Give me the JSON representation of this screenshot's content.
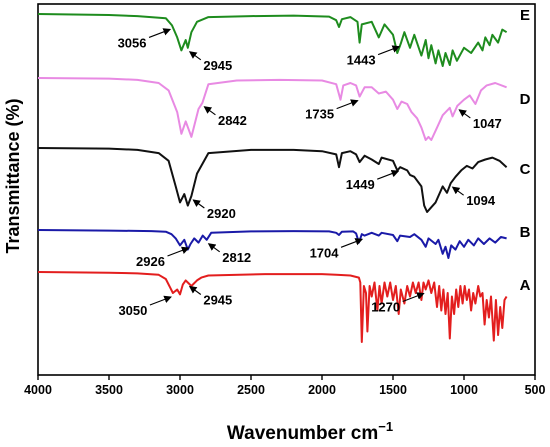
{
  "chart_data": {
    "type": "line",
    "title": "",
    "xlabel": "Wavenumber cm",
    "xlabel_superscript": "−1",
    "ylabel": "Transmittance (%)",
    "xlim": [
      4000,
      500
    ],
    "x_ticks": [
      "4000",
      "3500",
      "3000",
      "2500",
      "2000",
      "1500",
      "1000",
      "500"
    ],
    "x_tick_values": [
      4000,
      3500,
      3000,
      2500,
      2000,
      1500,
      1000,
      500
    ],
    "grid": false,
    "legend": "none",
    "series": [
      {
        "name": "E",
        "color": "#1e8c1e",
        "points": [
          [
            4000,
            0.0
          ],
          [
            3500,
            0.02
          ],
          [
            3300,
            0.04
          ],
          [
            3100,
            0.08
          ],
          [
            3056,
            0.22
          ],
          [
            3020,
            0.45
          ],
          [
            2990,
            0.7
          ],
          [
            2960,
            0.5
          ],
          [
            2945,
            0.65
          ],
          [
            2920,
            0.35
          ],
          [
            2880,
            0.15
          ],
          [
            2800,
            0.06
          ],
          [
            2500,
            0.04
          ],
          [
            2200,
            0.03
          ],
          [
            1950,
            0.05
          ],
          [
            1900,
            0.12
          ],
          [
            1880,
            0.25
          ],
          [
            1860,
            0.1
          ],
          [
            1800,
            0.06
          ],
          [
            1750,
            0.15
          ],
          [
            1735,
            0.55
          ],
          [
            1720,
            0.2
          ],
          [
            1650,
            0.15
          ],
          [
            1600,
            0.45
          ],
          [
            1560,
            0.2
          ],
          [
            1500,
            0.4
          ],
          [
            1470,
            0.75
          ],
          [
            1443,
            0.55
          ],
          [
            1420,
            0.35
          ],
          [
            1380,
            0.65
          ],
          [
            1350,
            0.4
          ],
          [
            1300,
            0.8
          ],
          [
            1270,
            0.5
          ],
          [
            1250,
            0.85
          ],
          [
            1230,
            0.6
          ],
          [
            1200,
            0.95
          ],
          [
            1180,
            0.7
          ],
          [
            1150,
            1.0
          ],
          [
            1130,
            0.75
          ],
          [
            1100,
            0.98
          ],
          [
            1080,
            0.7
          ],
          [
            1050,
            0.9
          ],
          [
            1000,
            0.65
          ],
          [
            950,
            0.75
          ],
          [
            900,
            0.55
          ],
          [
            870,
            0.7
          ],
          [
            850,
            0.45
          ],
          [
            820,
            0.6
          ],
          [
            800,
            0.4
          ],
          [
            760,
            0.55
          ],
          [
            730,
            0.3
          ],
          [
            700,
            0.35
          ]
        ]
      },
      {
        "name": "D",
        "color": "#e88ae3",
        "points": [
          [
            4000,
            0.0
          ],
          [
            3500,
            0.01
          ],
          [
            3300,
            0.03
          ],
          [
            3150,
            0.08
          ],
          [
            3080,
            0.2
          ],
          [
            3020,
            0.55
          ],
          [
            2990,
            0.9
          ],
          [
            2960,
            0.7
          ],
          [
            2920,
            0.95
          ],
          [
            2870,
            0.5
          ],
          [
            2842,
            0.4
          ],
          [
            2800,
            0.1
          ],
          [
            2600,
            0.04
          ],
          [
            2300,
            0.03
          ],
          [
            2000,
            0.04
          ],
          [
            1900,
            0.1
          ],
          [
            1870,
            0.35
          ],
          [
            1850,
            0.12
          ],
          [
            1800,
            0.08
          ],
          [
            1760,
            0.12
          ],
          [
            1735,
            0.3
          ],
          [
            1700,
            0.15
          ],
          [
            1650,
            0.15
          ],
          [
            1600,
            0.25
          ],
          [
            1550,
            0.22
          ],
          [
            1500,
            0.35
          ],
          [
            1470,
            0.5
          ],
          [
            1440,
            0.38
          ],
          [
            1400,
            0.42
          ],
          [
            1370,
            0.55
          ],
          [
            1330,
            0.65
          ],
          [
            1300,
            0.8
          ],
          [
            1270,
            1.0
          ],
          [
            1250,
            0.95
          ],
          [
            1230,
            1.0
          ],
          [
            1200,
            0.85
          ],
          [
            1150,
            0.6
          ],
          [
            1100,
            0.48
          ],
          [
            1080,
            0.62
          ],
          [
            1047,
            0.45
          ],
          [
            1000,
            0.35
          ],
          [
            960,
            0.28
          ],
          [
            920,
            0.42
          ],
          [
            880,
            0.2
          ],
          [
            840,
            0.12
          ],
          [
            780,
            0.08
          ],
          [
            700,
            0.15
          ]
        ]
      },
      {
        "name": "C",
        "color": "#111111",
        "points": [
          [
            4000,
            0.0
          ],
          [
            3500,
            0.01
          ],
          [
            3300,
            0.03
          ],
          [
            3150,
            0.08
          ],
          [
            3080,
            0.2
          ],
          [
            3030,
            0.6
          ],
          [
            3000,
            0.85
          ],
          [
            2970,
            0.72
          ],
          [
            2945,
            0.9
          ],
          [
            2920,
            0.75
          ],
          [
            2880,
            0.4
          ],
          [
            2800,
            0.08
          ],
          [
            2500,
            0.03
          ],
          [
            2200,
            0.03
          ],
          [
            2000,
            0.05
          ],
          [
            1900,
            0.1
          ],
          [
            1880,
            0.3
          ],
          [
            1860,
            0.08
          ],
          [
            1800,
            0.05
          ],
          [
            1760,
            0.1
          ],
          [
            1735,
            0.22
          ],
          [
            1700,
            0.12
          ],
          [
            1650,
            0.18
          ],
          [
            1600,
            0.25
          ],
          [
            1580,
            0.15
          ],
          [
            1500,
            0.2
          ],
          [
            1470,
            0.35
          ],
          [
            1449,
            0.3
          ],
          [
            1400,
            0.35
          ],
          [
            1380,
            0.42
          ],
          [
            1350,
            0.45
          ],
          [
            1300,
            0.6
          ],
          [
            1280,
            0.9
          ],
          [
            1260,
            1.0
          ],
          [
            1240,
            0.95
          ],
          [
            1200,
            0.85
          ],
          [
            1150,
            0.6
          ],
          [
            1120,
            0.7
          ],
          [
            1094,
            0.55
          ],
          [
            1060,
            0.45
          ],
          [
            1020,
            0.35
          ],
          [
            980,
            0.28
          ],
          [
            940,
            0.32
          ],
          [
            900,
            0.22
          ],
          [
            850,
            0.18
          ],
          [
            800,
            0.15
          ],
          [
            750,
            0.2
          ],
          [
            700,
            0.3
          ]
        ]
      },
      {
        "name": "B",
        "color": "#1a1aa8",
        "points": [
          [
            4000,
            0.0
          ],
          [
            3500,
            0.02
          ],
          [
            3200,
            0.04
          ],
          [
            3100,
            0.06
          ],
          [
            3060,
            0.15
          ],
          [
            3030,
            0.3
          ],
          [
            3000,
            0.55
          ],
          [
            2970,
            0.35
          ],
          [
            2945,
            0.7
          ],
          [
            2926,
            0.5
          ],
          [
            2900,
            0.3
          ],
          [
            2870,
            0.45
          ],
          [
            2840,
            0.2
          ],
          [
            2812,
            0.35
          ],
          [
            2780,
            0.1
          ],
          [
            2500,
            0.05
          ],
          [
            2200,
            0.04
          ],
          [
            1950,
            0.05
          ],
          [
            1900,
            0.1
          ],
          [
            1880,
            0.18
          ],
          [
            1860,
            0.06
          ],
          [
            1780,
            0.05
          ],
          [
            1760,
            0.12
          ],
          [
            1740,
            0.45
          ],
          [
            1720,
            0.15
          ],
          [
            1700,
            0.2
          ],
          [
            1650,
            0.1
          ],
          [
            1600,
            0.2
          ],
          [
            1580,
            0.1
          ],
          [
            1500,
            0.18
          ],
          [
            1470,
            0.4
          ],
          [
            1450,
            0.2
          ],
          [
            1380,
            0.25
          ],
          [
            1350,
            0.15
          ],
          [
            1300,
            0.35
          ],
          [
            1270,
            0.6
          ],
          [
            1250,
            0.3
          ],
          [
            1200,
            0.5
          ],
          [
            1180,
            0.35
          ],
          [
            1150,
            0.85
          ],
          [
            1130,
            0.6
          ],
          [
            1110,
            1.0
          ],
          [
            1090,
            0.55
          ],
          [
            1060,
            0.7
          ],
          [
            1030,
            0.4
          ],
          [
            1000,
            0.6
          ],
          [
            970,
            0.35
          ],
          [
            930,
            0.55
          ],
          [
            900,
            0.3
          ],
          [
            860,
            0.5
          ],
          [
            820,
            0.3
          ],
          [
            780,
            0.45
          ],
          [
            740,
            0.25
          ],
          [
            700,
            0.3
          ]
        ]
      },
      {
        "name": "A",
        "color": "#e31e1e",
        "points": [
          [
            4000,
            0.0
          ],
          [
            3500,
            0.01
          ],
          [
            3300,
            0.02
          ],
          [
            3150,
            0.04
          ],
          [
            3100,
            0.1
          ],
          [
            3070,
            0.22
          ],
          [
            3050,
            0.3
          ],
          [
            3020,
            0.25
          ],
          [
            3000,
            0.32
          ],
          [
            2980,
            0.18
          ],
          [
            2960,
            0.12
          ],
          [
            2945,
            0.15
          ],
          [
            2920,
            0.2
          ],
          [
            2880,
            0.12
          ],
          [
            2850,
            0.08
          ],
          [
            2800,
            0.05
          ],
          [
            2400,
            0.03
          ],
          [
            2000,
            0.03
          ],
          [
            1900,
            0.04
          ],
          [
            1800,
            0.05
          ],
          [
            1740,
            0.08
          ],
          [
            1730,
            0.15
          ],
          [
            1720,
            1.0
          ],
          [
            1705,
            0.2
          ],
          [
            1690,
            0.3
          ],
          [
            1680,
            0.85
          ],
          [
            1665,
            0.2
          ],
          [
            1650,
            0.35
          ],
          [
            1630,
            0.15
          ],
          [
            1610,
            0.55
          ],
          [
            1595,
            0.2
          ],
          [
            1580,
            0.45
          ],
          [
            1560,
            0.15
          ],
          [
            1540,
            0.35
          ],
          [
            1520,
            0.15
          ],
          [
            1500,
            0.4
          ],
          [
            1480,
            0.2
          ],
          [
            1460,
            0.6
          ],
          [
            1445,
            0.25
          ],
          [
            1420,
            0.45
          ],
          [
            1400,
            0.2
          ],
          [
            1380,
            0.35
          ],
          [
            1360,
            0.15
          ],
          [
            1340,
            0.3
          ],
          [
            1320,
            0.15
          ],
          [
            1300,
            0.4
          ],
          [
            1285,
            0.15
          ],
          [
            1270,
            0.25
          ],
          [
            1250,
            0.12
          ],
          [
            1230,
            0.3
          ],
          [
            1210,
            0.15
          ],
          [
            1190,
            0.5
          ],
          [
            1175,
            0.2
          ],
          [
            1160,
            0.55
          ],
          [
            1145,
            0.25
          ],
          [
            1130,
            0.6
          ],
          [
            1115,
            0.3
          ],
          [
            1100,
            0.95
          ],
          [
            1085,
            0.35
          ],
          [
            1070,
            0.6
          ],
          [
            1055,
            0.25
          ],
          [
            1040,
            0.5
          ],
          [
            1025,
            0.2
          ],
          [
            1010,
            0.45
          ],
          [
            995,
            0.2
          ],
          [
            980,
            0.4
          ],
          [
            965,
            0.25
          ],
          [
            950,
            0.55
          ],
          [
            935,
            0.3
          ],
          [
            920,
            0.45
          ],
          [
            900,
            0.2
          ],
          [
            885,
            0.35
          ],
          [
            870,
            0.3
          ],
          [
            855,
            0.75
          ],
          [
            840,
            0.4
          ],
          [
            825,
            0.65
          ],
          [
            810,
            0.35
          ],
          [
            790,
            0.98
          ],
          [
            775,
            0.4
          ],
          [
            760,
            0.9
          ],
          [
            745,
            0.5
          ],
          [
            730,
            0.8
          ],
          [
            715,
            0.4
          ],
          [
            700,
            0.35
          ]
        ]
      }
    ],
    "annotations": [
      {
        "text": "3056",
        "series": "E",
        "x": 3056,
        "position": "below-left"
      },
      {
        "text": "2945",
        "series": "E",
        "x": 2945,
        "position": "below-right"
      },
      {
        "text": "1443",
        "series": "E",
        "x": 1443,
        "position": "below-left"
      },
      {
        "text": "1735",
        "series": "D",
        "x": 1735,
        "position": "below-left"
      },
      {
        "text": "2842",
        "series": "D",
        "x": 2842,
        "position": "below-right"
      },
      {
        "text": "1047",
        "series": "D",
        "x": 1047,
        "position": "below-right"
      },
      {
        "text": "2920",
        "series": "C",
        "x": 2920,
        "position": "below-right"
      },
      {
        "text": "1449",
        "series": "C",
        "x": 1449,
        "position": "below-left"
      },
      {
        "text": "1094",
        "series": "C",
        "x": 1094,
        "position": "below-right"
      },
      {
        "text": "2926",
        "series": "B",
        "x": 2926,
        "position": "below-left"
      },
      {
        "text": "2812",
        "series": "B",
        "x": 2812,
        "position": "below-right"
      },
      {
        "text": "1704",
        "series": "B",
        "x": 1704,
        "position": "below-left"
      },
      {
        "text": "3050",
        "series": "A",
        "x": 3050,
        "position": "below-left"
      },
      {
        "text": "2945",
        "series": "A",
        "x": 2945,
        "position": "below-right"
      },
      {
        "text": "1270",
        "series": "A",
        "x": 1270,
        "position": "below-left"
      }
    ]
  }
}
